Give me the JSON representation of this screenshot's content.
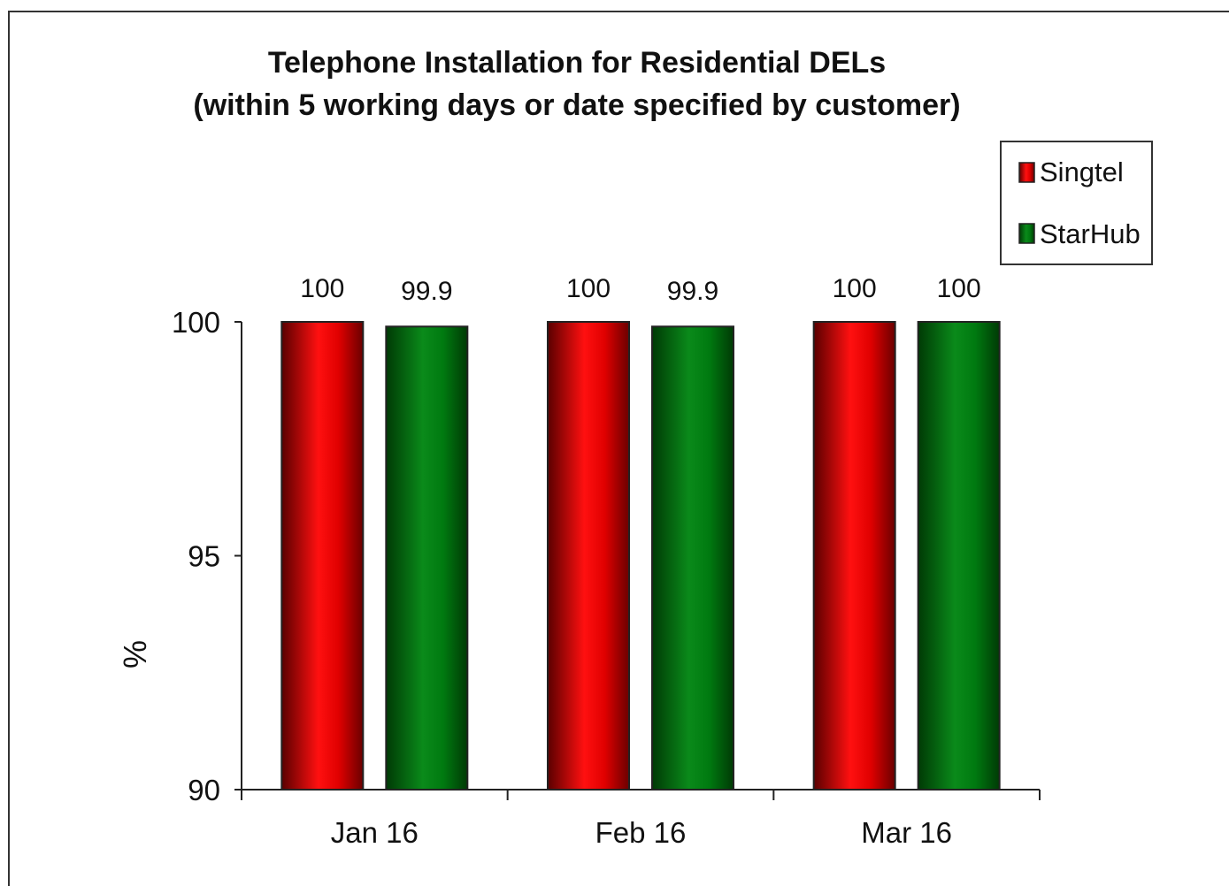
{
  "chart_data": {
    "type": "bar",
    "title": "Telephone Installation  for Residential  DELs",
    "subtitle": "(within 5 working days or date specified  by customer)",
    "xlabel": "",
    "ylabel": "%",
    "categories": [
      "Jan 16",
      "Feb 16",
      "Mar 16"
    ],
    "series": [
      {
        "name": "Singtel",
        "values": [
          100,
          100,
          100
        ],
        "labels": [
          "100",
          "100",
          "100"
        ],
        "color": "#e00000"
      },
      {
        "name": "StarHub",
        "values": [
          99.9,
          99.9,
          100
        ],
        "labels": [
          "99.9",
          "99.9",
          "100"
        ],
        "color": "#007a10"
      }
    ],
    "ylim": [
      90,
      100
    ],
    "yticks": [
      90,
      95,
      100
    ],
    "grid": false,
    "legend": "top-right"
  }
}
